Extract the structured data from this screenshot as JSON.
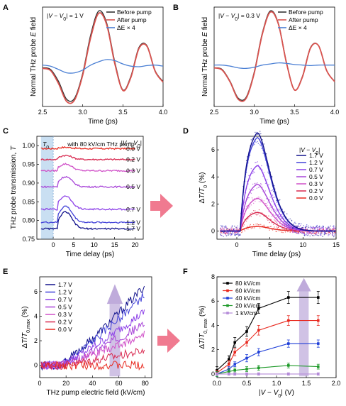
{
  "colors": {
    "before_pump": "#333333",
    "after_pump": "#d9534f",
    "delta_e": "#4a7fd4",
    "voltage": {
      "0.0 V": "#e8281e",
      "0.2 V": "#d8284f",
      "0.3 V": "#d050c8",
      "0.5 V": "#a845d8",
      "0.7 V": "#8c3fe8",
      "1.2 V": "#4242d8",
      "1.7 V": "#12128c"
    },
    "field": {
      "80 kV/cm": "#000000",
      "60 kV/cm": "#e8281e",
      "40 kV/cm": "#1f3fd8",
      "20 kV/cm": "#1f9a2a",
      "1 kV/cm": "#b48ad8"
    },
    "shade": "#c9dff2",
    "arrow": "#f07a90",
    "purple_arrow": "#a98fcf"
  },
  "chart_data": [
    {
      "panel": "A",
      "type": "line",
      "xlabel": "Time (ps)",
      "ylabel": "Normal THz probe E field",
      "xlim": [
        2.5,
        4.0
      ],
      "ylim": [
        -0.75,
        1.05
      ],
      "xticks": [
        "2.5",
        "3.0",
        "3.5",
        "4.0"
      ],
      "annotation": "|V − V0| = 1 V",
      "legend": [
        "Before pump",
        "After pump",
        "ΔE × 4"
      ],
      "legend_position": "top-right",
      "series": [
        {
          "name": "Before pump",
          "x": [
            2.5,
            2.6,
            2.7,
            2.8,
            2.9,
            3.0,
            3.1,
            3.2,
            3.3,
            3.4,
            3.5,
            3.6,
            3.7,
            3.8,
            3.9,
            4.0
          ],
          "y": [
            -0.05,
            -0.08,
            -0.3,
            -0.62,
            -0.6,
            -0.15,
            0.55,
            0.98,
            0.75,
            0.05,
            -0.45,
            -0.2,
            0.32,
            0.35,
            -0.1,
            -0.3
          ]
        },
        {
          "name": "After pump",
          "x": [
            2.5,
            2.6,
            2.7,
            2.8,
            2.9,
            3.0,
            3.1,
            3.2,
            3.3,
            3.4,
            3.5,
            3.6,
            3.7,
            3.8,
            3.9,
            4.0
          ],
          "y": [
            -0.06,
            -0.1,
            -0.34,
            -0.66,
            -0.63,
            -0.18,
            0.5,
            0.94,
            0.72,
            0.02,
            -0.46,
            -0.22,
            0.3,
            0.34,
            -0.11,
            -0.31
          ]
        },
        {
          "name": "ΔE × 4",
          "x": [
            2.5,
            2.6,
            2.7,
            2.8,
            2.9,
            3.0,
            3.1,
            3.2,
            3.3,
            3.4,
            3.5,
            3.6,
            3.7,
            3.8,
            3.9,
            4.0
          ],
          "y": [
            0.0,
            -0.02,
            -0.08,
            -0.14,
            -0.14,
            -0.09,
            0.0,
            0.06,
            0.1,
            0.08,
            0.02,
            -0.02,
            -0.03,
            -0.01,
            0.0,
            -0.02
          ]
        }
      ]
    },
    {
      "panel": "B",
      "type": "line",
      "xlabel": "Time (ps)",
      "ylabel": "Normal THz probe E field",
      "xlim": [
        2.5,
        4.0
      ],
      "ylim": [
        -0.75,
        1.05
      ],
      "xticks": [
        "2.5",
        "3.0",
        "3.5",
        "4.0"
      ],
      "annotation": "|V − V0| = 0.3 V",
      "legend": [
        "Before pump",
        "After pump",
        "ΔE × 4"
      ],
      "legend_position": "top-right",
      "series": [
        {
          "name": "Before pump",
          "x": [
            2.5,
            2.6,
            2.7,
            2.8,
            2.9,
            3.0,
            3.1,
            3.2,
            3.3,
            3.4,
            3.5,
            3.6,
            3.7,
            3.8,
            3.9,
            4.0
          ],
          "y": [
            -0.05,
            -0.08,
            -0.3,
            -0.6,
            -0.58,
            -0.12,
            0.58,
            0.98,
            0.75,
            0.05,
            -0.45,
            -0.2,
            0.32,
            0.35,
            -0.1,
            -0.3
          ]
        },
        {
          "name": "After pump",
          "x": [
            2.5,
            2.6,
            2.7,
            2.8,
            2.9,
            3.0,
            3.1,
            3.2,
            3.3,
            3.4,
            3.5,
            3.6,
            3.7,
            3.8,
            3.9,
            4.0
          ],
          "y": [
            -0.05,
            -0.09,
            -0.31,
            -0.62,
            -0.6,
            -0.14,
            0.56,
            0.96,
            0.74,
            0.04,
            -0.45,
            -0.21,
            0.31,
            0.35,
            -0.1,
            -0.3
          ]
        },
        {
          "name": "ΔE × 4",
          "x": [
            2.5,
            2.6,
            2.7,
            2.8,
            2.9,
            3.0,
            3.1,
            3.2,
            3.3,
            3.4,
            3.5,
            3.6,
            3.7,
            3.8,
            3.9,
            4.0
          ],
          "y": [
            0.0,
            0.0,
            -0.02,
            -0.05,
            -0.06,
            -0.04,
            0.0,
            0.02,
            0.04,
            0.03,
            0.01,
            0.0,
            -0.01,
            0.0,
            0.0,
            0.0
          ]
        }
      ]
    },
    {
      "panel": "C",
      "type": "line",
      "xlabel": "Time delay (ps)",
      "ylabel": "THz probe transmission, T",
      "xlim": [
        -4,
        22
      ],
      "ylim": [
        0.75,
        1.025
      ],
      "xticks": [
        "0",
        "5",
        "10",
        "15",
        "20"
      ],
      "yticks": [
        "0.75",
        "0.80",
        "0.85",
        "0.90",
        "0.95",
        "1.00"
      ],
      "annotation": "with 80 kV/cm THz pump",
      "t0_label": "T0",
      "shaded_x": [
        -3,
        0
      ],
      "legend_title": "|V − V0|",
      "series": [
        {
          "name": "0.0 V",
          "base": 0.992,
          "amp": 0.004
        },
        {
          "name": "0.2 V",
          "base": 0.963,
          "amp": 0.012
        },
        {
          "name": "0.3 V",
          "base": 0.933,
          "amp": 0.02
        },
        {
          "name": "0.5 V",
          "base": 0.89,
          "amp": 0.03
        },
        {
          "name": "0.7 V",
          "base": 0.83,
          "amp": 0.04
        },
        {
          "name": "1.2 V",
          "base": 0.795,
          "amp": 0.048
        },
        {
          "name": "1.7 V",
          "base": 0.778,
          "amp": 0.05
        }
      ]
    },
    {
      "panel": "D",
      "type": "scatter",
      "xlabel": "Time delay (ps)",
      "ylabel": "ΔT/T0 (%)",
      "xlim": [
        -3,
        15
      ],
      "ylim": [
        -0.6,
        7.0
      ],
      "xticks": [
        "0",
        "5",
        "10",
        "15"
      ],
      "yticks": [
        "0",
        "2",
        "4",
        "6"
      ],
      "legend_title": "|V − V0|",
      "legend": [
        "1.7 V",
        "1.2 V",
        "0.7 V",
        "0.5 V",
        "0.3 V",
        "0.2 V",
        "0.0 V"
      ],
      "series": [
        {
          "name": "1.7 V",
          "peak": 6.3
        },
        {
          "name": "1.2 V",
          "peak": 6.0
        },
        {
          "name": "0.7 V",
          "peak": 4.2
        },
        {
          "name": "0.5 V",
          "peak": 3.0
        },
        {
          "name": "0.3 V",
          "peak": 2.1
        },
        {
          "name": "0.2 V",
          "peak": 1.2
        },
        {
          "name": "0.0 V",
          "peak": 0.3
        }
      ]
    },
    {
      "panel": "E",
      "type": "line",
      "xlabel": "THz pump electric field (kV/cm)",
      "ylabel": "ΔT/T0,max (%)",
      "xlim": [
        0,
        85
      ],
      "ylim": [
        -1.0,
        7.2
      ],
      "xticks": [
        "0",
        "20",
        "40",
        "60",
        "80"
      ],
      "yticks": [
        "0",
        "2",
        "4",
        "6"
      ],
      "legend": [
        "1.7 V",
        "1.2 V",
        "0.7 V",
        "0.5 V",
        "0.3 V",
        "0.2 V",
        "0.0 V"
      ],
      "series": [
        {
          "name": "1.7 V",
          "final": 6.5
        },
        {
          "name": "1.2 V",
          "final": 5.8
        },
        {
          "name": "0.7 V",
          "final": 4.4
        },
        {
          "name": "0.5 V",
          "final": 3.4
        },
        {
          "name": "0.3 V",
          "final": 2.5
        },
        {
          "name": "0.2 V",
          "final": 1.2
        },
        {
          "name": "0.0 V",
          "final": 0.0
        }
      ]
    },
    {
      "panel": "F",
      "type": "line",
      "xlabel": "|V − V0| (V)",
      "ylabel": "ΔT/T0, max (%)",
      "xlim": [
        0,
        2.0
      ],
      "ylim": [
        -0.3,
        8.0
      ],
      "xticks": [
        "0.0",
        "0.5",
        "1.0",
        "1.5",
        "2.0"
      ],
      "yticks": [
        "0",
        "2",
        "4",
        "6",
        "8"
      ],
      "x": [
        0.0,
        0.2,
        0.3,
        0.5,
        0.7,
        1.2,
        1.7
      ],
      "legend_position": "top-left",
      "series": [
        {
          "name": "80 kV/cm",
          "values": [
            0.3,
            1.2,
            2.6,
            3.5,
            5.4,
            6.3,
            6.3
          ],
          "err": [
            0.3,
            0.3,
            0.4,
            0.4,
            0.4,
            0.5,
            0.5
          ]
        },
        {
          "name": "60 kV/cm",
          "values": [
            0.1,
            0.8,
            1.8,
            2.6,
            3.6,
            4.4,
            4.4
          ],
          "err": [
            0.2,
            0.3,
            0.3,
            0.3,
            0.4,
            0.4,
            0.4
          ]
        },
        {
          "name": "40 kV/cm",
          "values": [
            0.0,
            0.4,
            0.8,
            1.3,
            1.8,
            2.5,
            2.5
          ],
          "err": [
            0.2,
            0.2,
            0.2,
            0.3,
            0.3,
            0.3,
            0.3
          ]
        },
        {
          "name": "20 kV/cm",
          "values": [
            0.0,
            0.2,
            0.3,
            0.4,
            0.5,
            0.7,
            0.6
          ],
          "err": [
            0.2,
            0.2,
            0.2,
            0.2,
            0.2,
            0.2,
            0.2
          ]
        },
        {
          "name": "1 kV/cm",
          "values": [
            0.0,
            0.0,
            0.0,
            0.0,
            0.0,
            0.0,
            0.0
          ],
          "err": [
            0.1,
            0.1,
            0.1,
            0.1,
            0.1,
            0.1,
            0.1
          ]
        }
      ]
    }
  ]
}
